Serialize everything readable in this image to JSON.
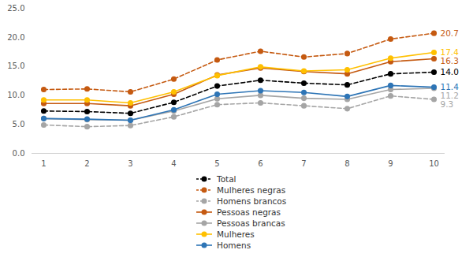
{
  "chart_data": {
    "type": "line",
    "categories": [
      "1",
      "2",
      "3",
      "4",
      "5",
      "6",
      "7",
      "8",
      "9",
      "10"
    ],
    "ylim": [
      0,
      25
    ],
    "yticks": [
      {
        "value": 0,
        "label": "0.0"
      },
      {
        "value": 5,
        "label": "5.0"
      },
      {
        "value": 10,
        "label": "10.0"
      },
      {
        "value": 15,
        "label": "15.0"
      },
      {
        "value": 20,
        "label": "20.0"
      },
      {
        "value": 25,
        "label": "25.0"
      }
    ],
    "grid": false,
    "legend": "bottom",
    "data_labels": true,
    "series": [
      {
        "name": "Total",
        "color": "#000000",
        "marker": "circle",
        "line_style": "dashed",
        "values": [
          7.3,
          7.2,
          6.9,
          8.8,
          11.6,
          12.6,
          12.1,
          11.8,
          13.7,
          14.0
        ],
        "value_labels": [
          null,
          null,
          null,
          null,
          null,
          null,
          null,
          null,
          null,
          "14.0"
        ]
      },
      {
        "name": "Mulheres negras",
        "color": "#c55a11",
        "marker": "circle",
        "line_style": "dashed",
        "values": [
          11.0,
          11.1,
          10.6,
          12.8,
          16.1,
          17.6,
          16.6,
          17.2,
          19.7,
          20.7
        ],
        "value_labels": [
          null,
          null,
          null,
          null,
          null,
          null,
          null,
          null,
          null,
          "20.7"
        ]
      },
      {
        "name": "Homens brancos",
        "color": "#a5a5a5",
        "marker": "circle",
        "line_style": "dashed",
        "values": [
          4.9,
          4.6,
          4.8,
          6.3,
          8.4,
          8.7,
          8.2,
          7.7,
          9.9,
          9.3
        ],
        "value_labels": [
          null,
          null,
          null,
          null,
          null,
          null,
          null,
          null,
          null,
          "9.3"
        ]
      },
      {
        "name": "Pessoas negras",
        "color": "#c55a11",
        "marker": "circle",
        "line_style": "solid",
        "values": [
          8.6,
          8.6,
          8.2,
          10.2,
          13.5,
          14.7,
          14.1,
          13.7,
          15.8,
          16.3
        ],
        "value_labels": [
          null,
          null,
          null,
          null,
          null,
          null,
          null,
          null,
          null,
          "16.3"
        ]
      },
      {
        "name": "Pessoas brancas",
        "color": "#a5a5a5",
        "marker": "circle",
        "line_style": "solid",
        "values": [
          6.0,
          5.8,
          5.7,
          7.3,
          9.4,
          10.0,
          9.5,
          9.3,
          11.0,
          11.2
        ],
        "value_labels": [
          null,
          null,
          null,
          null,
          null,
          null,
          null,
          null,
          null,
          "11.2"
        ]
      },
      {
        "name": "Mulheres",
        "color": "#ffc000",
        "marker": "circle",
        "line_style": "solid",
        "values": [
          9.2,
          9.2,
          8.7,
          10.6,
          13.4,
          14.9,
          14.2,
          14.4,
          16.4,
          17.4
        ],
        "value_labels": [
          null,
          null,
          null,
          null,
          null,
          null,
          null,
          null,
          null,
          "17.4"
        ]
      },
      {
        "name": "Homens",
        "color": "#2e75b6",
        "marker": "circle",
        "line_style": "solid",
        "values": [
          6.0,
          5.9,
          5.7,
          7.5,
          10.2,
          10.8,
          10.5,
          9.8,
          11.7,
          11.4
        ],
        "value_labels": [
          null,
          null,
          null,
          null,
          null,
          null,
          null,
          null,
          null,
          "11.4"
        ]
      }
    ]
  }
}
